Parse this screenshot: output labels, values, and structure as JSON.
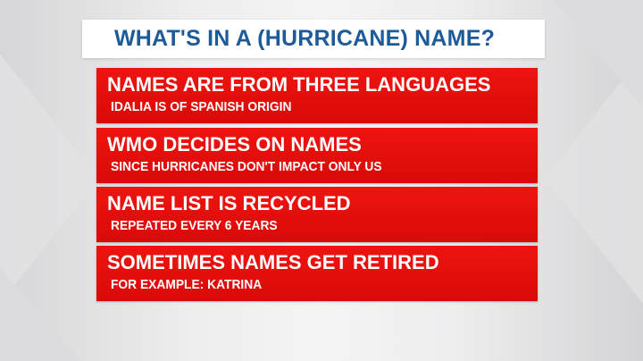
{
  "title": "WHAT'S IN A (HURRICANE) NAME?",
  "items": [
    {
      "heading": "NAMES ARE FROM THREE LANGUAGES",
      "detail": "IDALIA IS OF SPANISH ORIGIN"
    },
    {
      "heading": "WMO DECIDES ON NAMES",
      "detail": "SINCE HURRICANES DON'T IMPACT ONLY US"
    },
    {
      "heading": "NAME LIST IS RECYCLED",
      "detail": "REPEATED EVERY 6 YEARS"
    },
    {
      "heading": "SOMETIMES NAMES GET RETIRED",
      "detail": "FOR EXAMPLE: KATRINA"
    }
  ],
  "colors": {
    "title": "#1d5b98",
    "bar": "#e5100c",
    "background": "#eeeeef"
  }
}
